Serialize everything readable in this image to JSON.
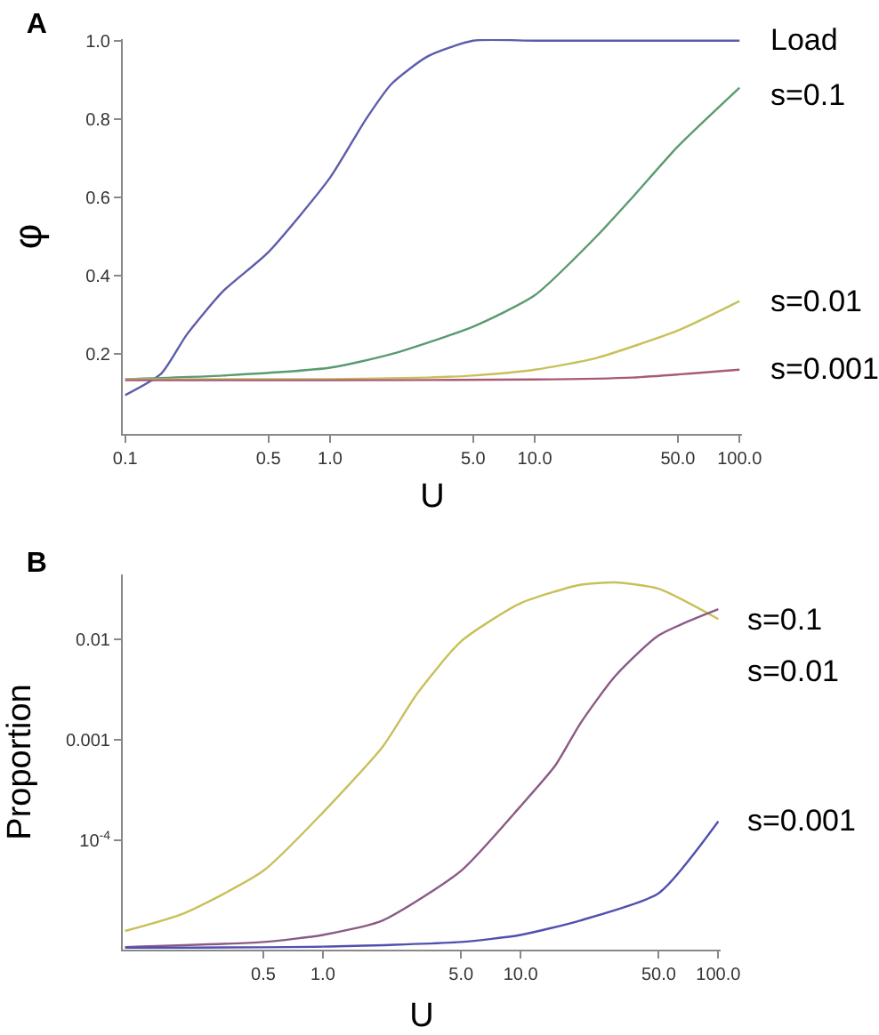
{
  "chart_data": [
    {
      "type": "line",
      "title": "A",
      "xlabel": "U",
      "ylabel": "φ",
      "log": "x",
      "xlim": [
        0.1,
        100
      ],
      "ylim": [
        0,
        1.0
      ],
      "xticks": [
        {
          "value": 0.1,
          "label": "0.1"
        },
        {
          "value": 0.5,
          "label": "0.5"
        },
        {
          "value": 1,
          "label": "1.0"
        },
        {
          "value": 5,
          "label": "5.0"
        },
        {
          "value": 10,
          "label": "10.0"
        },
        {
          "value": 50,
          "label": "50.0"
        },
        {
          "value": 100,
          "label": "100.0"
        }
      ],
      "yticks": [
        0.2,
        0.4,
        0.6,
        0.8,
        {
          "value": 1,
          "label": "1.0"
        }
      ],
      "series": [
        {
          "name": "Load",
          "color": "#5c5cac",
          "x": [
            0.1,
            0.15,
            0.2,
            0.3,
            0.5,
            1,
            1.5,
            2,
            3,
            5,
            10,
            30,
            100
          ],
          "values": [
            0.095,
            0.15,
            0.25,
            0.36,
            0.46,
            0.65,
            0.8,
            0.89,
            0.96,
            1.0,
            1.0,
            1.0,
            1.0
          ]
        },
        {
          "name": "s=0.1",
          "color": "#5a9a70",
          "x": [
            0.1,
            0.3,
            1,
            2,
            5,
            10,
            20,
            30,
            50,
            100
          ],
          "values": [
            0.136,
            0.145,
            0.165,
            0.2,
            0.27,
            0.35,
            0.5,
            0.6,
            0.73,
            0.88
          ]
        },
        {
          "name": "s=0.01",
          "color": "#c8c05a",
          "x": [
            0.1,
            1,
            3,
            5,
            10,
            20,
            50,
            100
          ],
          "values": [
            0.135,
            0.136,
            0.14,
            0.145,
            0.16,
            0.19,
            0.26,
            0.335
          ]
        },
        {
          "name": "s=0.001",
          "color": "#a85a78",
          "x": [
            0.1,
            1,
            10,
            30,
            100
          ],
          "values": [
            0.133,
            0.133,
            0.135,
            0.14,
            0.16
          ]
        }
      ]
    },
    {
      "type": "line",
      "title": "B",
      "xlabel": "U",
      "ylabel": "Proportion",
      "log": "xy",
      "xlim": [
        0.1,
        100
      ],
      "ylim": [
        8.5e-06,
        0.043
      ],
      "xticks": [
        {
          "value": 0.5,
          "label": "0.5"
        },
        {
          "value": 1,
          "label": "1.0"
        },
        {
          "value": 5,
          "label": "5.0"
        },
        {
          "value": 10,
          "label": "10.0"
        },
        {
          "value": 50,
          "label": "50.0"
        },
        {
          "value": 100,
          "label": "100.0"
        }
      ],
      "yticks": [
        {
          "value": 0.0001,
          "label": "10$^{-4}$"
        },
        0.001,
        0.01
      ],
      "series": [
        {
          "name": "s=0.1",
          "color": "#c8c05a",
          "x": [
            0.1,
            0.2,
            0.5,
            1,
            2,
            3,
            5,
            10,
            20,
            30,
            50,
            100
          ],
          "values": [
            1.26e-05,
            1.9e-05,
            5e-05,
            0.00019,
            0.00085,
            0.0029,
            0.0096,
            0.023,
            0.035,
            0.037,
            0.032,
            0.016
          ]
        },
        {
          "name": "s=0.01",
          "color": "#8a5a84",
          "x": [
            0.1,
            0.5,
            1,
            2,
            5,
            10,
            15,
            20,
            30,
            50,
            100
          ],
          "values": [
            8.7e-06,
            9.8e-06,
            1.15e-05,
            1.6e-05,
            5e-05,
            0.00022,
            0.00056,
            0.00145,
            0.0043,
            0.011,
            0.02
          ]
        },
        {
          "name": "s=0.001",
          "color": "#5050b0",
          "x": [
            0.1,
            1,
            5,
            10,
            20,
            50,
            100
          ],
          "values": [
            8.6e-06,
            8.8e-06,
            9.8e-06,
            1.15e-05,
            1.6e-05,
            3e-05,
            0.000155
          ]
        }
      ]
    }
  ]
}
